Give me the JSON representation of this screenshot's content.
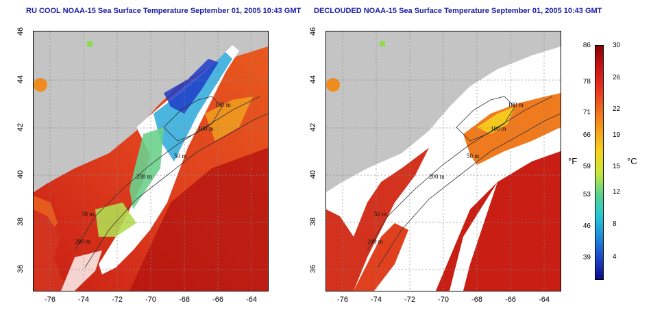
{
  "panels": [
    {
      "title": "RU COOL NOAA-15 Sea Surface Temperature September 01, 2005 10:43 GMT",
      "contour_labels": [
        "100 m",
        "100 m",
        "50 m",
        "200 m",
        "50 m",
        "200 m"
      ]
    },
    {
      "title": "DECLOUDED NOAA-15 Sea Surface Temperature September 01, 2005 10:43 GMT",
      "contour_labels": [
        "100 m",
        "100 m",
        "50 m",
        "200 m",
        "50 m",
        "200 m"
      ]
    }
  ],
  "axes": {
    "lat_ticks": [
      "46",
      "44",
      "42",
      "40",
      "38",
      "36"
    ],
    "lon_ticks": [
      "-76",
      "-74",
      "-72",
      "-70",
      "-68",
      "-66",
      "-64"
    ]
  },
  "colorbar": {
    "fahrenheit_label": "°F",
    "celsius_label": "°C",
    "fahrenheit_ticks": [
      "86",
      "78",
      "71",
      "66",
      "59",
      "53",
      "46",
      "39"
    ],
    "celsius_ticks": [
      "30",
      "26",
      "22",
      "19",
      "15",
      "12",
      "8",
      "4"
    ],
    "colors": [
      "#8b0000",
      "#c81414",
      "#e6321e",
      "#f06a1e",
      "#f5a01e",
      "#f7d21e",
      "#c8e63c",
      "#5ad28c",
      "#28c8d2",
      "#1e8cdc",
      "#1e46c8",
      "#0a0a8c"
    ]
  },
  "colors": {
    "land": "#c4c4c4",
    "cloud": "#ffffff",
    "title": "#1a1aa6"
  }
}
